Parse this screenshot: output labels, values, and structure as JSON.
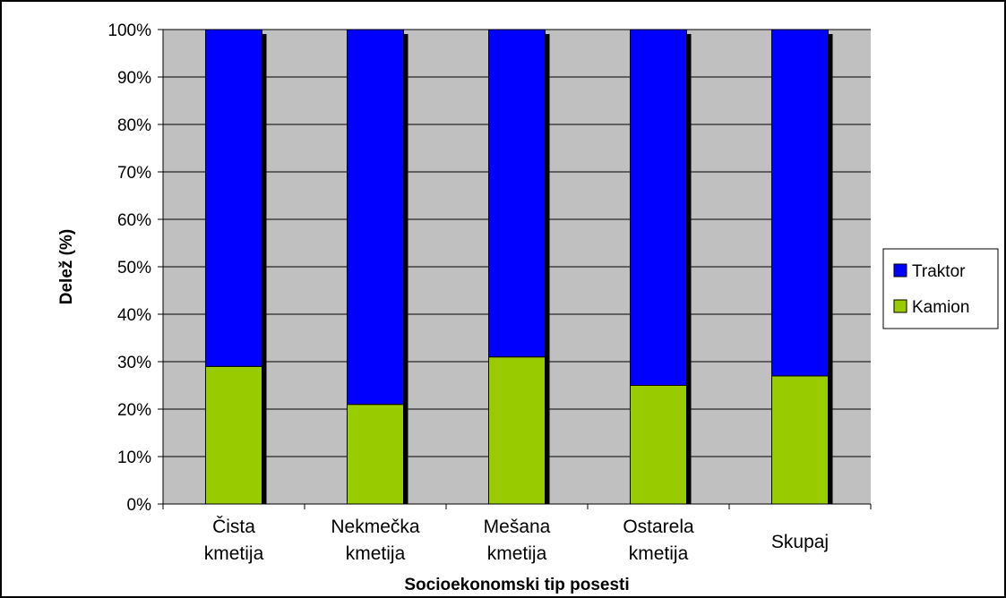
{
  "chart_data": {
    "type": "bar",
    "stacked": "percent",
    "xlabel": "Socioekonomski tip posesti",
    "ylabel": "Delež (%)",
    "ylim": [
      0,
      100
    ],
    "yticks": [
      "0%",
      "10%",
      "20%",
      "30%",
      "40%",
      "50%",
      "60%",
      "70%",
      "80%",
      "90%",
      "100%"
    ],
    "grid": true,
    "legend_position": "right",
    "categories": [
      [
        "Čista",
        "kmetija"
      ],
      [
        "Nekmečka",
        "kmetija"
      ],
      [
        "Mešana",
        "kmetija"
      ],
      [
        "Ostarela",
        "kmetija"
      ],
      [
        "Skupaj"
      ]
    ],
    "series": [
      {
        "name": "Kamion",
        "color": "#99cc00",
        "values": [
          29,
          21,
          31,
          25,
          27
        ]
      },
      {
        "name": "Traktor",
        "color": "#0000ff",
        "values": [
          71,
          79,
          69,
          75,
          73
        ]
      }
    ],
    "legend": [
      "Traktor",
      "Kamion"
    ],
    "plot_background": "#c0c0c0"
  }
}
